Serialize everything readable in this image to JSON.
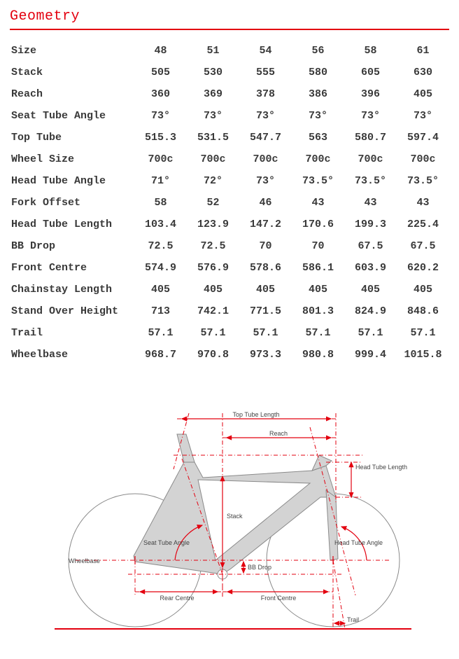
{
  "title": "Geometry",
  "accent_color": "#e3000f",
  "text_color": "#3a3a3a",
  "background_color": "#ffffff",
  "frame_fill": "#d3d3d3",
  "frame_stroke": "#8a8a8a",
  "font_family": "Courier New",
  "table": {
    "columns": [
      "Size",
      "48",
      "51",
      "54",
      "56",
      "58",
      "61"
    ],
    "rows": [
      {
        "label": "Stack",
        "v": [
          "505",
          "530",
          "555",
          "580",
          "605",
          "630"
        ]
      },
      {
        "label": "Reach",
        "v": [
          "360",
          "369",
          "378",
          "386",
          "396",
          "405"
        ]
      },
      {
        "label": "Seat Tube Angle",
        "v": [
          "73°",
          "73°",
          "73°",
          "73°",
          "73°",
          "73°"
        ]
      },
      {
        "label": "Top Tube",
        "v": [
          "515.3",
          "531.5",
          "547.7",
          "563",
          "580.7",
          "597.4"
        ]
      },
      {
        "label": "Wheel Size",
        "v": [
          "700c",
          "700c",
          "700c",
          "700c",
          "700c",
          "700c"
        ]
      },
      {
        "label": "Head Tube Angle",
        "v": [
          "71°",
          "72°",
          "73°",
          "73.5°",
          "73.5°",
          "73.5°"
        ]
      },
      {
        "label": "Fork Offset",
        "v": [
          "58",
          "52",
          "46",
          "43",
          "43",
          "43"
        ]
      },
      {
        "label": "Head Tube Length",
        "v": [
          "103.4",
          "123.9",
          "147.2",
          "170.6",
          "199.3",
          "225.4"
        ]
      },
      {
        "label": "BB Drop",
        "v": [
          "72.5",
          "72.5",
          "70",
          "70",
          "67.5",
          "67.5"
        ]
      },
      {
        "label": "Front Centre",
        "v": [
          "574.9",
          "576.9",
          "578.6",
          "586.1",
          "603.9",
          "620.2"
        ]
      },
      {
        "label": "Chainstay Length",
        "v": [
          "405",
          "405",
          "405",
          "405",
          "405",
          "405"
        ]
      },
      {
        "label": "Stand Over Height",
        "v": [
          "713",
          "742.1",
          "771.5",
          "801.3",
          "824.9",
          "848.6"
        ]
      },
      {
        "label": "Trail",
        "v": [
          "57.1",
          "57.1",
          "57.1",
          "57.1",
          "57.1",
          "57.1"
        ]
      },
      {
        "label": "Wheelbase",
        "v": [
          "968.7",
          "970.8",
          "973.3",
          "980.8",
          "999.4",
          "1015.8"
        ]
      }
    ]
  },
  "diagram": {
    "labels": {
      "top_tube_length": "Top Tube Length",
      "reach": "Reach",
      "head_tube_length": "Head Tube Length",
      "stack": "Stack",
      "seat_tube_angle": "Seat Tube Angle",
      "head_tube_angle": "Head Tube Angle",
      "wheelbase": "Wheelbase",
      "bb_drop": "BB Drop",
      "rear_centre": "Rear Centre",
      "front_centre": "Front Centre",
      "trail": "Trail"
    }
  }
}
